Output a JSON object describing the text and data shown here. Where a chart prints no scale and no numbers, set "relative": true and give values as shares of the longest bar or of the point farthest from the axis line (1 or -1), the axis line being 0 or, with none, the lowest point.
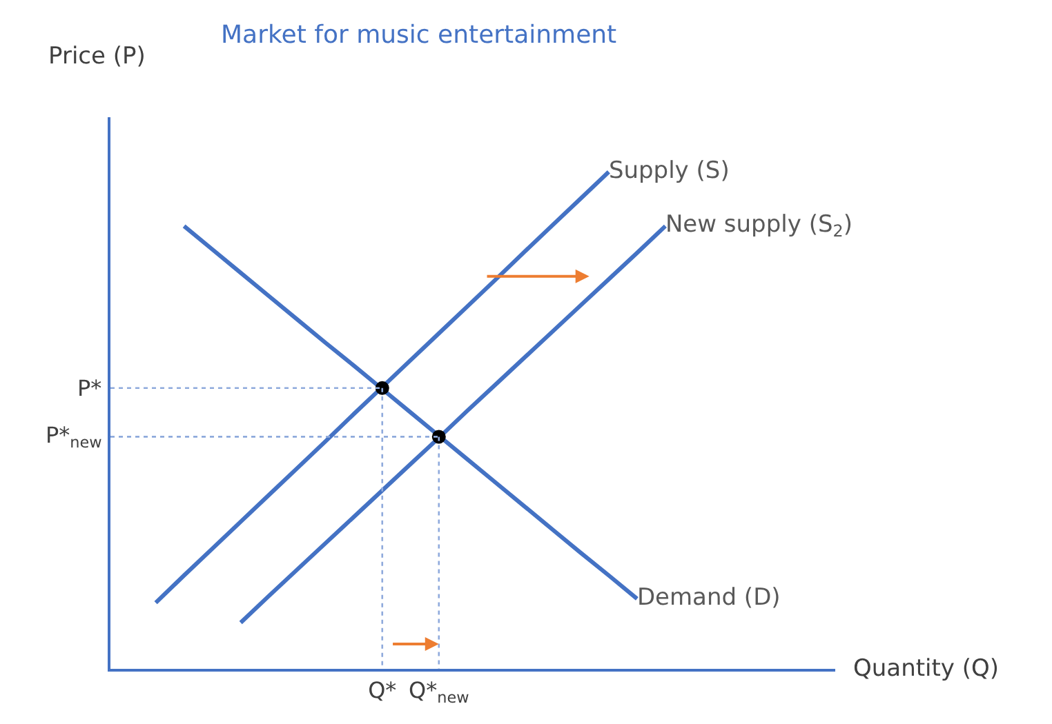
{
  "chart_data": {
    "type": "line",
    "title": "Market for music entertainment",
    "ylabel": "Price (P)",
    "annotations": [
      "Quantity (Q)"
    ],
    "relative": true,
    "marker": "none",
    "line_style": "solid",
    "categories": [
      null,
      null,
      null,
      null,
      null,
      null,
      null,
      null,
      "Q*",
      null,
      "Q*$_{new}$",
      null,
      null,
      null,
      null,
      null,
      null,
      null,
      null,
      null
    ],
    "ref_lines": [
      {
        "axis": "y",
        "value": 0.565,
        "label": "P*",
        "color": "#8faadc",
        "line_style": "dotted"
      },
      {
        "axis": "y",
        "value": 0.467,
        "label": "P*$_{new}$",
        "color": "#8faadc",
        "line_style": "dotted"
      }
    ],
    "series": [
      {
        "name": "Supply (S)",
        "color": "#4472c4",
        "values": [
          0.133,
          0.188,
          0.242,
          0.296,
          0.35,
          0.404,
          0.458,
          0.513,
          0.567,
          0.621,
          0.675,
          0.729,
          0.783,
          0.838,
          0.892,
          0.946,
          1.0,
          null,
          null,
          null
        ]
      },
      {
        "name": "New supply (S$_{2}$)",
        "color": "#4472c4",
        "values": [
          null,
          null,
          null,
          0.093,
          0.147,
          0.2,
          0.253,
          0.306,
          0.359,
          0.412,
          0.465,
          0.519,
          0.572,
          0.625,
          0.678,
          0.731,
          0.784,
          0.837,
          0.891,
          null
        ]
      },
      {
        "name": "Demand (D)",
        "color": "#4472c4",
        "values": [
          null,
          0.891,
          0.844,
          0.797,
          0.75,
          0.703,
          0.656,
          0.61,
          0.563,
          0.516,
          0.469,
          0.422,
          0.375,
          0.328,
          0.281,
          0.234,
          0.188,
          0.141,
          null,
          null
        ]
      },
      {
        "type": "scatter",
        "color": "#000000",
        "marker": "circle",
        "values": [
          null,
          null,
          null,
          null,
          null,
          null,
          null,
          null,
          0.565,
          null,
          0.467,
          null,
          null,
          null,
          null,
          null,
          null,
          null,
          null,
          null
        ]
      }
    ]
  }
}
